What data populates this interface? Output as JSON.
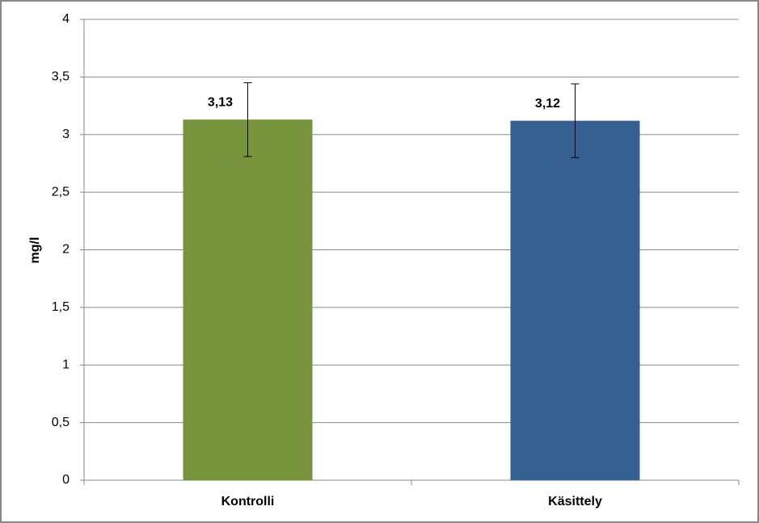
{
  "chart_data": {
    "type": "bar",
    "y_label": "mg/l",
    "categories": [
      "Kontrolli",
      "Käsittely"
    ],
    "values": [
      3.13,
      3.12
    ],
    "value_labels": [
      "3,13",
      "3,12"
    ],
    "errors": [
      0.32,
      0.32
    ],
    "colors": [
      "#77933c",
      "#376092"
    ],
    "ylim": [
      0,
      4
    ],
    "yticks": [
      0,
      {
        "value": 0.5,
        "label": "0,5"
      },
      1,
      {
        "value": 1.5,
        "label": "1,5"
      },
      2,
      {
        "value": 2.5,
        "label": "2,5"
      },
      3,
      {
        "value": 3.5,
        "label": "3,5"
      },
      4
    ],
    "grid": true
  }
}
